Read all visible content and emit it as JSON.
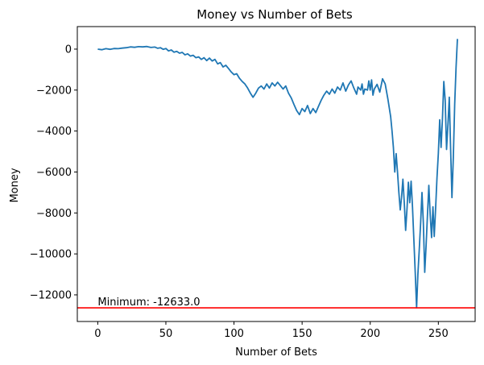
{
  "chart_data": {
    "type": "line",
    "title": "Money vs Number of Bets",
    "xlabel": "Number of Bets",
    "ylabel": "Money",
    "xlim": [
      -15,
      277
    ],
    "ylim": [
      -13300,
      1100
    ],
    "xticks": [
      0,
      50,
      100,
      150,
      200,
      250
    ],
    "yticks": [
      -12000,
      -10000,
      -8000,
      -6000,
      -4000,
      -2000,
      0
    ],
    "grid": false,
    "colors": {
      "series": "#1f77b4",
      "minimum_line": "#ff0000"
    },
    "series": [
      {
        "points": [
          [
            0,
            0
          ],
          [
            3,
            -30
          ],
          [
            6,
            20
          ],
          [
            9,
            -10
          ],
          [
            12,
            30
          ],
          [
            15,
            20
          ],
          [
            18,
            50
          ],
          [
            21,
            70
          ],
          [
            24,
            110
          ],
          [
            27,
            90
          ],
          [
            30,
            120
          ],
          [
            33,
            110
          ],
          [
            36,
            130
          ],
          [
            39,
            80
          ],
          [
            42,
            100
          ],
          [
            44,
            40
          ],
          [
            46,
            70
          ],
          [
            48,
            -10
          ],
          [
            50,
            30
          ],
          [
            52,
            -90
          ],
          [
            54,
            -40
          ],
          [
            56,
            -150
          ],
          [
            58,
            -110
          ],
          [
            60,
            -200
          ],
          [
            62,
            -160
          ],
          [
            64,
            -280
          ],
          [
            66,
            -230
          ],
          [
            68,
            -340
          ],
          [
            70,
            -300
          ],
          [
            72,
            -420
          ],
          [
            74,
            -380
          ],
          [
            76,
            -500
          ],
          [
            78,
            -420
          ],
          [
            80,
            -560
          ],
          [
            82,
            -440
          ],
          [
            84,
            -580
          ],
          [
            86,
            -500
          ],
          [
            88,
            -720
          ],
          [
            90,
            -660
          ],
          [
            92,
            -870
          ],
          [
            94,
            -790
          ],
          [
            96,
            -950
          ],
          [
            98,
            -1120
          ],
          [
            100,
            -1250
          ],
          [
            102,
            -1200
          ],
          [
            104,
            -1420
          ],
          [
            106,
            -1580
          ],
          [
            108,
            -1700
          ],
          [
            110,
            -1900
          ],
          [
            112,
            -2150
          ],
          [
            114,
            -2350
          ],
          [
            116,
            -2150
          ],
          [
            118,
            -1900
          ],
          [
            120,
            -1800
          ],
          [
            122,
            -1950
          ],
          [
            124,
            -1700
          ],
          [
            126,
            -1900
          ],
          [
            128,
            -1650
          ],
          [
            130,
            -1800
          ],
          [
            132,
            -1620
          ],
          [
            134,
            -1780
          ],
          [
            136,
            -1950
          ],
          [
            138,
            -1800
          ],
          [
            140,
            -2150
          ],
          [
            142,
            -2380
          ],
          [
            144,
            -2700
          ],
          [
            146,
            -3000
          ],
          [
            148,
            -3200
          ],
          [
            150,
            -2900
          ],
          [
            152,
            -3050
          ],
          [
            154,
            -2750
          ],
          [
            156,
            -3150
          ],
          [
            158,
            -2900
          ],
          [
            160,
            -3100
          ],
          [
            162,
            -2800
          ],
          [
            164,
            -2500
          ],
          [
            166,
            -2250
          ],
          [
            168,
            -2050
          ],
          [
            170,
            -2200
          ],
          [
            172,
            -1950
          ],
          [
            174,
            -2150
          ],
          [
            176,
            -1850
          ],
          [
            178,
            -2000
          ],
          [
            180,
            -1650
          ],
          [
            182,
            -2050
          ],
          [
            184,
            -1750
          ],
          [
            186,
            -1550
          ],
          [
            188,
            -1900
          ],
          [
            190,
            -2200
          ],
          [
            191,
            -1850
          ],
          [
            193,
            -2000
          ],
          [
            194,
            -1700
          ],
          [
            195,
            -2200
          ],
          [
            196,
            -1950
          ],
          [
            198,
            -2000
          ],
          [
            199,
            -1550
          ],
          [
            200,
            -2000
          ],
          [
            201,
            -1500
          ],
          [
            202,
            -2250
          ],
          [
            203,
            -1950
          ],
          [
            205,
            -1720
          ],
          [
            207,
            -2100
          ],
          [
            209,
            -1450
          ],
          [
            211,
            -1700
          ],
          [
            213,
            -2450
          ],
          [
            215,
            -3300
          ],
          [
            216,
            -4000
          ],
          [
            217,
            -4800
          ],
          [
            218,
            -6000
          ],
          [
            219,
            -5100
          ],
          [
            220,
            -6000
          ],
          [
            221,
            -7000
          ],
          [
            222,
            -7850
          ],
          [
            223,
            -7250
          ],
          [
            224,
            -6350
          ],
          [
            225,
            -7500
          ],
          [
            226,
            -8850
          ],
          [
            227,
            -7800
          ],
          [
            228,
            -6500
          ],
          [
            229,
            -7500
          ],
          [
            230,
            -6450
          ],
          [
            231,
            -7700
          ],
          [
            232,
            -9300
          ],
          [
            233,
            -10900
          ],
          [
            234,
            -12633
          ],
          [
            235,
            -11000
          ],
          [
            236,
            -9800
          ],
          [
            237,
            -8500
          ],
          [
            238,
            -7000
          ],
          [
            239,
            -8500
          ],
          [
            240,
            -10900
          ],
          [
            241,
            -9600
          ],
          [
            242,
            -8100
          ],
          [
            243,
            -6650
          ],
          [
            244,
            -8100
          ],
          [
            245,
            -9200
          ],
          [
            246,
            -7700
          ],
          [
            247,
            -9150
          ],
          [
            248,
            -7800
          ],
          [
            249,
            -6300
          ],
          [
            250,
            -5100
          ],
          [
            251,
            -3450
          ],
          [
            252,
            -4800
          ],
          [
            253,
            -3400
          ],
          [
            254,
            -1580
          ],
          [
            255,
            -2500
          ],
          [
            256,
            -4900
          ],
          [
            257,
            -3700
          ],
          [
            258,
            -2350
          ],
          [
            259,
            -4800
          ],
          [
            260,
            -7250
          ],
          [
            261,
            -5300
          ],
          [
            262,
            -2700
          ],
          [
            263,
            -900
          ],
          [
            264,
            500
          ]
        ]
      }
    ],
    "reference_line": {
      "y": -12633,
      "label": "Minimum: -12633.0"
    }
  }
}
